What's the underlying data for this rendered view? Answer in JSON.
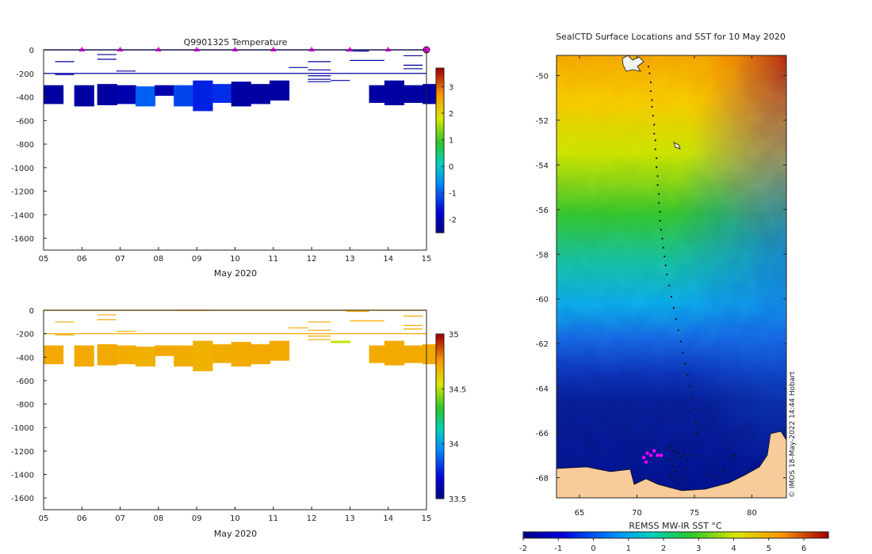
{
  "chart_data": [
    {
      "type": "heatmap",
      "title": "Q9901325  Temperature",
      "xlabel": "May 2020",
      "ylabel": "",
      "xticks": [
        "05",
        "06",
        "07",
        "08",
        "09",
        "10",
        "11",
        "12",
        "13",
        "14",
        "15"
      ],
      "yticks": [
        0,
        -200,
        -400,
        -600,
        -800,
        -1000,
        -1200,
        -1400,
        -1600
      ],
      "ylim": [
        -1700,
        0
      ],
      "xlim": [
        5,
        15
      ],
      "colorbar_ticks": [
        -2,
        -1,
        0,
        1,
        2,
        3
      ],
      "colorbar_range": [
        -2.5,
        3.7
      ],
      "marker_days": [
        6,
        7,
        8,
        9,
        10,
        11,
        12,
        13,
        14,
        15
      ],
      "profiles": [
        {
          "day": 5.0,
          "top": -300,
          "bottom": -460,
          "value": -2.3
        },
        {
          "day": 5.8,
          "top": -300,
          "bottom": -480,
          "value": -2.3
        },
        {
          "day": 6.4,
          "top": -290,
          "bottom": -470,
          "value": -2.3
        },
        {
          "day": 6.9,
          "top": -300,
          "bottom": -460,
          "value": -2.2
        },
        {
          "day": 7.4,
          "top": -310,
          "bottom": -480,
          "value": -1.0
        },
        {
          "day": 7.9,
          "top": -300,
          "bottom": -390,
          "value": -2.2
        },
        {
          "day": 8.4,
          "top": -300,
          "bottom": -480,
          "value": -1.2
        },
        {
          "day": 8.9,
          "top": -260,
          "bottom": -520,
          "value": -1.5
        },
        {
          "day": 9.4,
          "top": -290,
          "bottom": -450,
          "value": -1.4
        },
        {
          "day": 9.9,
          "top": -270,
          "bottom": -480,
          "value": -2.3
        },
        {
          "day": 10.4,
          "top": -290,
          "bottom": -460,
          "value": -2.3
        },
        {
          "day": 10.9,
          "top": -260,
          "bottom": -430,
          "value": -2.3
        },
        {
          "day": 13.5,
          "top": -300,
          "bottom": -450,
          "value": -2.3
        },
        {
          "day": 13.9,
          "top": -260,
          "bottom": -470,
          "value": -2.3
        },
        {
          "day": 14.4,
          "top": -300,
          "bottom": -450,
          "value": -2.3
        },
        {
          "day": 14.9,
          "top": -290,
          "bottom": -460,
          "value": -2.3
        }
      ],
      "shallow_segments": [
        {
          "d0": 5.3,
          "d1": 5.8,
          "depth": -100
        },
        {
          "d0": 6.4,
          "d1": 6.9,
          "depth": -40
        },
        {
          "d0": 6.4,
          "d1": 6.9,
          "depth": -80
        },
        {
          "d0": 5.3,
          "d1": 5.8,
          "depth": -210
        },
        {
          "d0": 6.9,
          "d1": 7.4,
          "depth": -180
        },
        {
          "d0": 11.4,
          "d1": 11.9,
          "depth": -150
        },
        {
          "d0": 11.9,
          "d1": 12.5,
          "depth": -100
        },
        {
          "d0": 11.9,
          "d1": 12.5,
          "depth": -170
        },
        {
          "d0": 11.9,
          "d1": 12.5,
          "depth": -220
        },
        {
          "d0": 11.9,
          "d1": 12.5,
          "depth": -250
        },
        {
          "d0": 11.9,
          "d1": 12.5,
          "depth": -270
        },
        {
          "d0": 12.5,
          "d1": 13.0,
          "depth": -260
        },
        {
          "d0": 12.9,
          "d1": 13.5,
          "depth": -10
        },
        {
          "d0": 13.0,
          "d1": 13.9,
          "depth": -90
        },
        {
          "d0": 14.4,
          "d1": 14.9,
          "depth": -50
        },
        {
          "d0": 14.4,
          "d1": 14.9,
          "depth": -130
        },
        {
          "d0": 14.4,
          "d1": 14.9,
          "depth": -160
        },
        {
          "d0": 5.0,
          "d1": 15.0,
          "depth": -200
        }
      ]
    },
    {
      "type": "heatmap",
      "title": "",
      "xlabel": "May 2020",
      "ylabel": "",
      "xticks": [
        "05",
        "06",
        "07",
        "08",
        "09",
        "10",
        "11",
        "12",
        "13",
        "14",
        "15"
      ],
      "yticks": [
        0,
        -200,
        -400,
        -600,
        -800,
        -1000,
        -1200,
        -1400,
        -1600
      ],
      "ylim": [
        -1700,
        0
      ],
      "xlim": [
        5,
        15
      ],
      "colorbar_ticks": [
        "33.5",
        "34",
        "34.5",
        "35"
      ],
      "colorbar_range": [
        33.5,
        35
      ],
      "profiles": [
        {
          "day": 5.0,
          "top": -300,
          "bottom": -460,
          "value": 34.72
        },
        {
          "day": 5.8,
          "top": -300,
          "bottom": -480,
          "value": 34.72
        },
        {
          "day": 6.4,
          "top": -290,
          "bottom": -470,
          "value": 34.72
        },
        {
          "day": 6.9,
          "top": -300,
          "bottom": -460,
          "value": 34.71
        },
        {
          "day": 7.4,
          "top": -310,
          "bottom": -480,
          "value": 34.7
        },
        {
          "day": 7.9,
          "top": -300,
          "bottom": -390,
          "value": 34.72
        },
        {
          "day": 8.4,
          "top": -300,
          "bottom": -480,
          "value": 34.71
        },
        {
          "day": 8.9,
          "top": -260,
          "bottom": -520,
          "value": 34.7
        },
        {
          "day": 9.4,
          "top": -290,
          "bottom": -450,
          "value": 34.71
        },
        {
          "day": 9.9,
          "top": -270,
          "bottom": -480,
          "value": 34.72
        },
        {
          "day": 10.4,
          "top": -290,
          "bottom": -460,
          "value": 34.72
        },
        {
          "day": 10.9,
          "top": -260,
          "bottom": -430,
          "value": 34.72
        },
        {
          "day": 12.5,
          "top": -260,
          "bottom": -280,
          "value": 34.52
        },
        {
          "day": 13.5,
          "top": -300,
          "bottom": -450,
          "value": 34.72
        },
        {
          "day": 13.9,
          "top": -260,
          "bottom": -470,
          "value": 34.72
        },
        {
          "day": 14.4,
          "top": -300,
          "bottom": -450,
          "value": 34.72
        },
        {
          "day": 14.9,
          "top": -290,
          "bottom": -460,
          "value": 34.72
        }
      ],
      "shallow_segments": [
        {
          "d0": 5.3,
          "d1": 5.8,
          "depth": -100
        },
        {
          "d0": 6.4,
          "d1": 6.9,
          "depth": -40
        },
        {
          "d0": 6.4,
          "d1": 6.9,
          "depth": -80
        },
        {
          "d0": 5.3,
          "d1": 5.8,
          "depth": -210
        },
        {
          "d0": 6.9,
          "d1": 7.4,
          "depth": -180
        },
        {
          "d0": 11.4,
          "d1": 11.9,
          "depth": -150
        },
        {
          "d0": 11.9,
          "d1": 12.5,
          "depth": -100
        },
        {
          "d0": 11.9,
          "d1": 12.5,
          "depth": -170
        },
        {
          "d0": 11.9,
          "d1": 12.5,
          "depth": -220
        },
        {
          "d0": 11.9,
          "d1": 12.5,
          "depth": -250
        },
        {
          "d0": 12.9,
          "d1": 13.5,
          "depth": -10
        },
        {
          "d0": 13.0,
          "d1": 13.9,
          "depth": -90
        },
        {
          "d0": 14.4,
          "d1": 14.9,
          "depth": -50
        },
        {
          "d0": 14.4,
          "d1": 14.9,
          "depth": -130
        },
        {
          "d0": 14.4,
          "d1": 14.9,
          "depth": -160
        },
        {
          "d0": 5.0,
          "d1": 15.0,
          "depth": -200
        },
        {
          "d0": 8.4,
          "d1": 9.4,
          "depth": -2
        }
      ]
    },
    {
      "type": "heatmap",
      "title": "SealCTD Surface Locations and SST for 10 May 2020",
      "xlabel": "",
      "ylabel": "",
      "colorbar_label": "REMSS MW-IR SST °C",
      "xticks": [
        65,
        70,
        75,
        80
      ],
      "yticks": [
        -50,
        -52,
        -54,
        -56,
        -58,
        -60,
        -62,
        -64,
        -66,
        -68
      ],
      "xlim": [
        63,
        83
      ],
      "ylim": [
        -68.9,
        -49.1
      ],
      "colorbar_ticks": [
        -2,
        -1,
        0,
        1,
        2,
        3,
        4,
        5,
        6
      ],
      "colorbar_range": [
        -2,
        6.7
      ],
      "credit": "© IMOS 18-May-2022 14:44 Hobart",
      "track": [
        [
          71.0,
          -49.6
        ],
        [
          71.1,
          -49.9
        ],
        [
          71.2,
          -50.3
        ],
        [
          71.2,
          -50.7
        ],
        [
          71.3,
          -51.1
        ],
        [
          71.3,
          -51.4
        ],
        [
          71.4,
          -51.8
        ],
        [
          71.5,
          -52.2
        ],
        [
          71.5,
          -52.6
        ],
        [
          71.6,
          -52.9
        ],
        [
          71.6,
          -53.3
        ],
        [
          71.7,
          -53.7
        ],
        [
          71.7,
          -54.1
        ],
        [
          71.8,
          -54.5
        ],
        [
          71.8,
          -54.9
        ],
        [
          71.9,
          -55.3
        ],
        [
          71.9,
          -55.7
        ],
        [
          72.0,
          -56.1
        ],
        [
          72.0,
          -56.5
        ],
        [
          72.1,
          -56.9
        ],
        [
          72.2,
          -57.3
        ],
        [
          72.3,
          -57.7
        ],
        [
          72.4,
          -58.1
        ],
        [
          72.5,
          -58.5
        ],
        [
          72.6,
          -58.9
        ],
        [
          72.8,
          -59.4
        ],
        [
          73.0,
          -59.9
        ],
        [
          73.2,
          -60.4
        ],
        [
          73.4,
          -60.9
        ],
        [
          73.6,
          -61.4
        ],
        [
          73.8,
          -61.9
        ],
        [
          74.0,
          -62.4
        ],
        [
          74.2,
          -62.9
        ],
        [
          74.4,
          -63.4
        ],
        [
          74.6,
          -63.9
        ],
        [
          74.8,
          -64.4
        ],
        [
          75.0,
          -64.9
        ],
        [
          75.1,
          -65.5
        ],
        [
          75.2,
          -66.0
        ],
        [
          75.3,
          -66.5
        ]
      ],
      "recent_positions": [
        [
          70.6,
          -67.1
        ],
        [
          70.9,
          -66.9
        ],
        [
          71.2,
          -67.0
        ],
        [
          71.5,
          -66.8
        ],
        [
          71.8,
          -67.0
        ],
        [
          72.1,
          -67.0
        ],
        [
          70.8,
          -67.3
        ]
      ],
      "cluster": [
        [
          72.6,
          -66.7
        ],
        [
          72.9,
          -66.6
        ],
        [
          73.2,
          -66.8
        ],
        [
          73.5,
          -66.9
        ],
        [
          73.8,
          -67.1
        ],
        [
          74.1,
          -67.0
        ],
        [
          74.4,
          -67.2
        ],
        [
          74.7,
          -67.0
        ],
        [
          75.0,
          -67.1
        ],
        [
          75.3,
          -67.0
        ],
        [
          72.8,
          -67.2
        ],
        [
          73.1,
          -67.5
        ],
        [
          73.4,
          -67.7
        ],
        [
          73.7,
          -67.9
        ],
        [
          74.0,
          -68.1
        ],
        [
          73.6,
          -68.3
        ],
        [
          74.3,
          -67.6
        ],
        [
          75.8,
          -67.6
        ],
        [
          76.3,
          -67.9
        ],
        [
          77.0,
          -68.0
        ],
        [
          77.6,
          -67.7
        ],
        [
          78.1,
          -67.1
        ],
        [
          78.5,
          -67.0
        ],
        [
          73.3,
          -68.1
        ],
        [
          72.9,
          -67.9
        ]
      ]
    }
  ]
}
